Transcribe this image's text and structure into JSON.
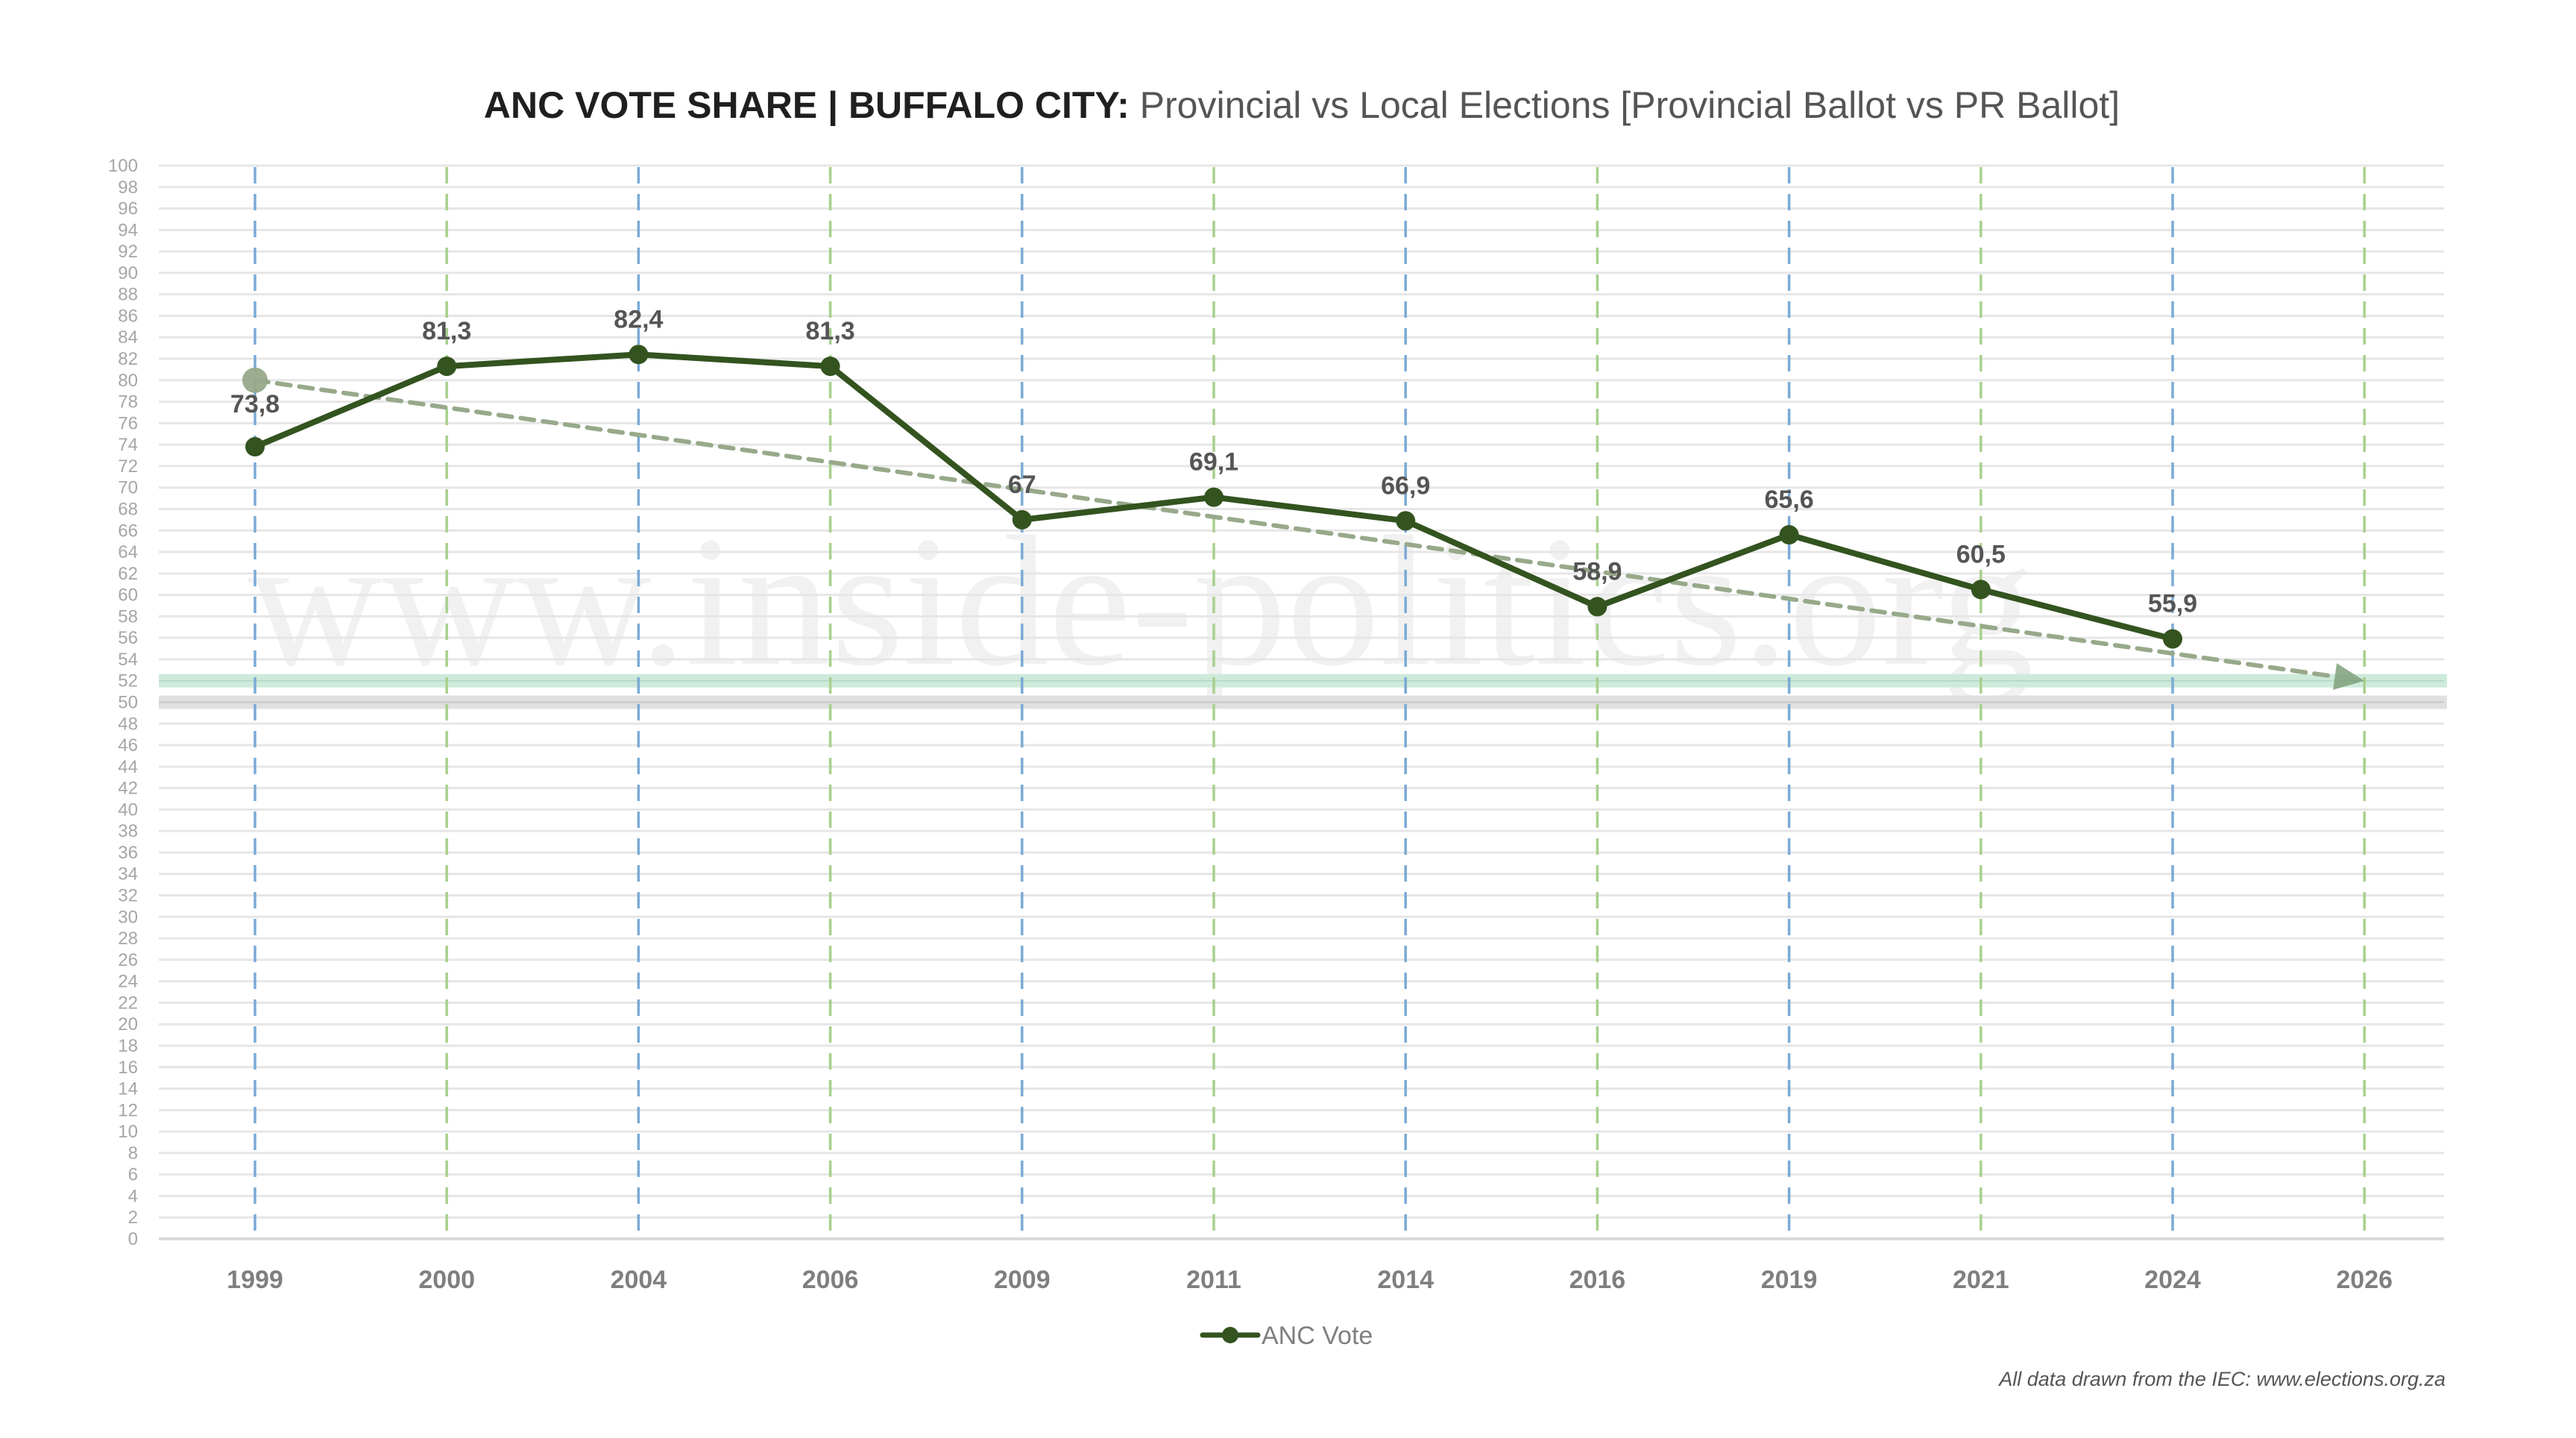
{
  "title": {
    "bold": "ANC VOTE SHARE | BUFFALO CITY:",
    "regular": " Provincial vs Local Elections [Provincial Ballot vs PR Ballot]"
  },
  "watermark": "www.inside-politics.org",
  "source_note": "All data drawn from the IEC: www.elections.org.za",
  "colors": {
    "series_line": "#33531f",
    "provincial_gridline": "#7aaad6",
    "local_gridline": "#a8d08d",
    "trend_line": "#97a98a",
    "majority_band": "#cdeadb",
    "fifty_band": "#e0e0e0"
  },
  "chart_data": {
    "type": "line",
    "title": "ANC VOTE SHARE | BUFFALO CITY: Provincial vs Local Elections [Provincial Ballot vs PR Ballot]",
    "xlabel": "",
    "ylabel": "",
    "ylim": [
      0,
      100
    ],
    "ytick_step": 2,
    "grid": true,
    "legend_position": "bottom",
    "categories": [
      "1999",
      "2000",
      "2004",
      "2006",
      "2009",
      "2011",
      "2014",
      "2016",
      "2019",
      "2021",
      "2024",
      "2026"
    ],
    "election_types": [
      "provincial",
      "local",
      "provincial",
      "local",
      "provincial",
      "local",
      "provincial",
      "local",
      "provincial",
      "local",
      "provincial",
      "local"
    ],
    "series": [
      {
        "name": "ANC Vote",
        "values": [
          73.8,
          81.3,
          82.4,
          81.3,
          67.0,
          69.1,
          66.9,
          58.9,
          65.6,
          60.5,
          55.9,
          null
        ],
        "labels": [
          "73,8",
          "81,3",
          "82,4",
          "81,3",
          "67",
          "69,1",
          "66,9",
          "58,9",
          "65,6",
          "60,5",
          "55,9",
          null
        ]
      }
    ],
    "trend_arrow": {
      "from": {
        "category": "1999",
        "value": 80
      },
      "to": {
        "category": "2026",
        "value": 52
      }
    },
    "reference_bands": [
      {
        "value": 52,
        "label": "majority band"
      },
      {
        "value": 50,
        "label": "50% line"
      }
    ]
  }
}
